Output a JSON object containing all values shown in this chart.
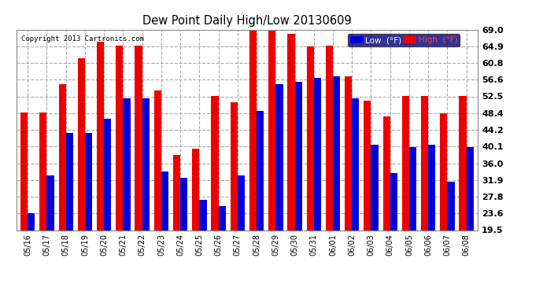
{
  "title": "Dew Point Daily High/Low 20130609",
  "copyright": "Copyright 2013 Cartronics.com",
  "dates": [
    "05/16",
    "05/17",
    "05/18",
    "05/19",
    "05/20",
    "05/21",
    "05/22",
    "05/23",
    "05/24",
    "05/25",
    "05/26",
    "05/27",
    "05/28",
    "05/29",
    "05/30",
    "05/31",
    "06/01",
    "06/02",
    "06/03",
    "06/04",
    "06/05",
    "06/06",
    "06/07",
    "06/08"
  ],
  "low": [
    23.6,
    33.0,
    43.5,
    43.5,
    47.0,
    52.0,
    52.0,
    34.0,
    32.5,
    27.0,
    25.5,
    33.0,
    49.0,
    55.5,
    56.0,
    57.0,
    57.5,
    52.0,
    40.5,
    33.5,
    40.0,
    40.5,
    31.5,
    40.0
  ],
  "high": [
    48.5,
    48.5,
    55.5,
    62.0,
    66.0,
    65.0,
    65.0,
    54.0,
    38.0,
    39.5,
    52.5,
    51.0,
    69.0,
    69.0,
    68.0,
    64.9,
    65.0,
    57.5,
    51.5,
    47.5,
    52.5,
    52.5,
    48.4,
    52.5
  ],
  "low_color": "#0000dd",
  "high_color": "#ee0000",
  "bg_color": "#ffffff",
  "plot_bg_color": "#ffffff",
  "grid_color": "#aaaaaa",
  "ylim_min": 19.5,
  "ylim_max": 69.0,
  "yticks": [
    19.5,
    23.6,
    27.8,
    31.9,
    36.0,
    40.1,
    44.2,
    48.4,
    52.5,
    56.6,
    60.8,
    64.9,
    69.0
  ]
}
